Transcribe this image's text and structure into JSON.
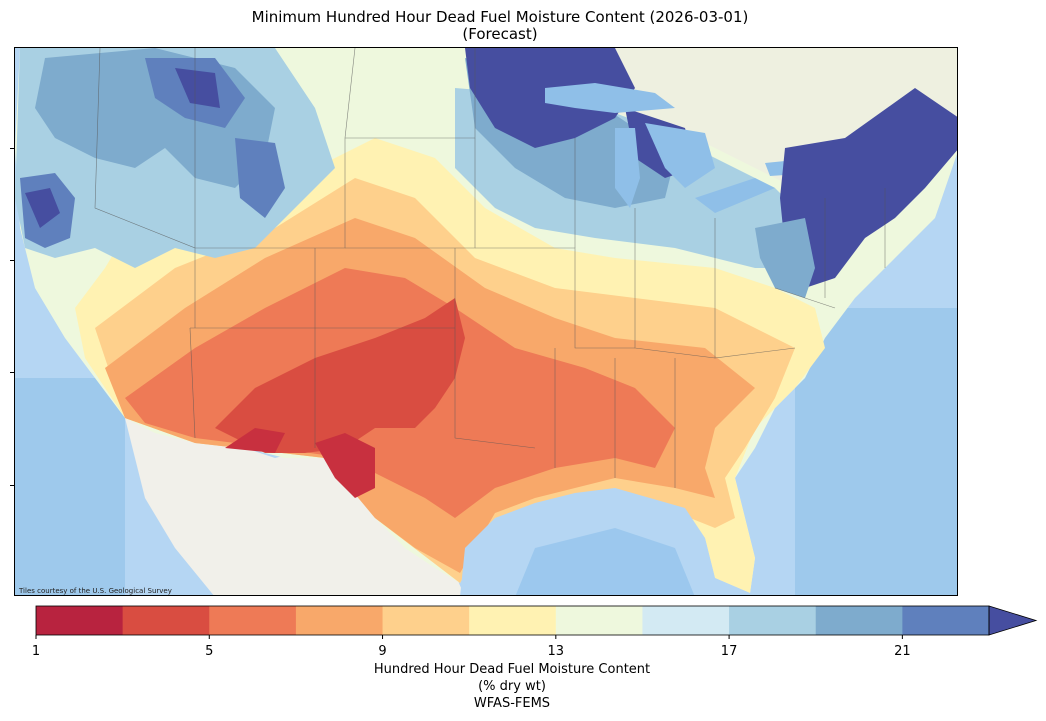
{
  "figure": {
    "title_line1": "Minimum Hundred Hour Dead Fuel Moisture Content (2026-03-01)",
    "title_line2": "(Forecast)",
    "tile_credit": "Tiles courtesy of the U.S. Geological Survey"
  },
  "colorbar": {
    "label_line1": "Hundred Hour Dead Fuel Moisture Content",
    "label_line2": "(% dry wt)",
    "label_line3": "WFAS-FEMS",
    "tick_labels": [
      "1",
      "5",
      "9",
      "13",
      "17",
      "21"
    ],
    "bins": [
      1,
      3,
      5,
      7,
      9,
      11,
      13,
      15,
      17,
      19,
      21,
      23
    ],
    "colors": [
      "#b8233f",
      "#d94d41",
      "#ee7a56",
      "#f8a86a",
      "#fed08c",
      "#fff2b2",
      "#eef8dd",
      "#d3eaf3",
      "#a9d0e3",
      "#7eabcd",
      "#5f80bd"
    ],
    "extend_color": "#464ea0",
    "extend": "max"
  },
  "map": {
    "extent": "contiguous United States",
    "basemap_colors": {
      "ocean": "#a9cdee",
      "land": "#f1f0ea",
      "lakes": "#8fbfe8"
    }
  }
}
